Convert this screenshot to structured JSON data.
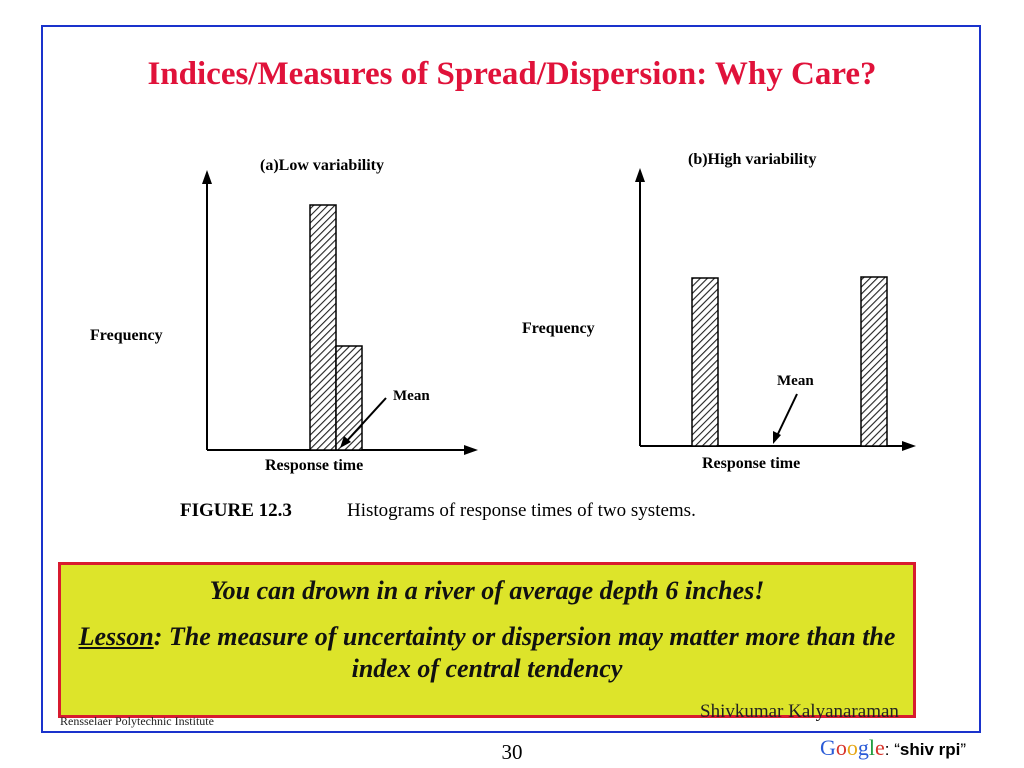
{
  "slide": {
    "title": "Indices/Measures of Spread/Dispersion: Why Care?",
    "page_number": "30"
  },
  "figure": {
    "caption_label": "FIGURE 12.3",
    "caption_text": "Histograms of response times of two systems.",
    "panel_a": {
      "title": "(a)Low variability",
      "ylabel": "Frequency",
      "xlabel": "Response time",
      "mean_label": "Mean"
    },
    "panel_b": {
      "title": "(b)High variability",
      "ylabel": "Frequency",
      "xlabel": "Response time",
      "mean_label": "Mean"
    }
  },
  "callout": {
    "line1": "You can drown in a river of average depth 6 inches!",
    "lesson_word": "Lesson",
    "lesson_text": ": The measure of uncertainty or dispersion may matter more than the index of central tendency"
  },
  "footer": {
    "left": "Rensselaer Polytechnic Institute",
    "right": "Shivkumar Kalyanaraman",
    "search_prefix": ": “",
    "search_keyword": "shiv rpi",
    "search_suffix": "”",
    "google_letters": [
      "G",
      "o",
      "o",
      "g",
      "l",
      "e"
    ]
  },
  "colors": {
    "title": "#e0123a",
    "frame": "#1a33cc",
    "callout_bg": "#dde42a",
    "callout_border": "#d81b2f"
  }
}
